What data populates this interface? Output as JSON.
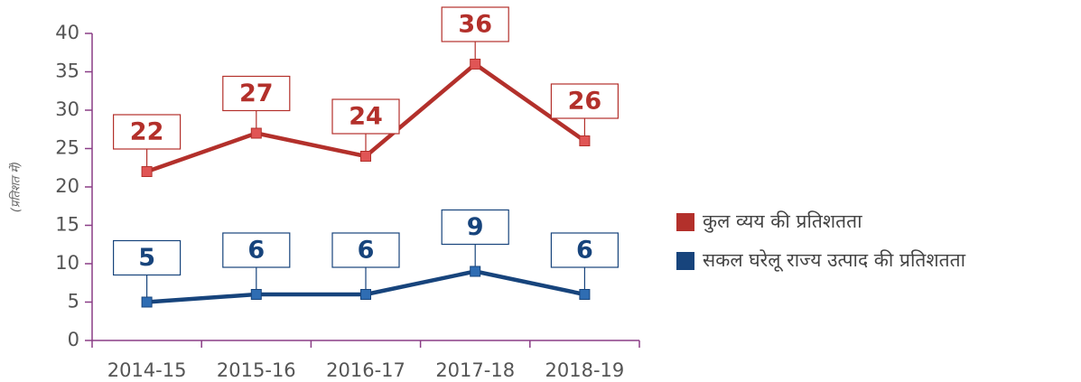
{
  "chart_data": {
    "type": "line",
    "ylabel": "(प्रतिशत में)",
    "categories": [
      "2014-15",
      "2015-16",
      "2016-17",
      "2017-18",
      "2018-19"
    ],
    "series": [
      {
        "name": "कुल व्यय की प्रतिशतता",
        "color": "#b3302b",
        "marker_color": "#e05555",
        "values": [
          22,
          27,
          24,
          36,
          26
        ]
      },
      {
        "name": "सकल घरेलू राज्य उत्पाद की प्रतिशतता",
        "color": "#17447c",
        "marker_color": "#2f6db3",
        "values": [
          5,
          6,
          6,
          9,
          6
        ]
      }
    ],
    "ylim": [
      0,
      40
    ],
    "yticks": [
      0,
      5,
      10,
      15,
      20,
      25,
      30,
      35,
      40
    ],
    "grid": false,
    "legend": "right"
  }
}
